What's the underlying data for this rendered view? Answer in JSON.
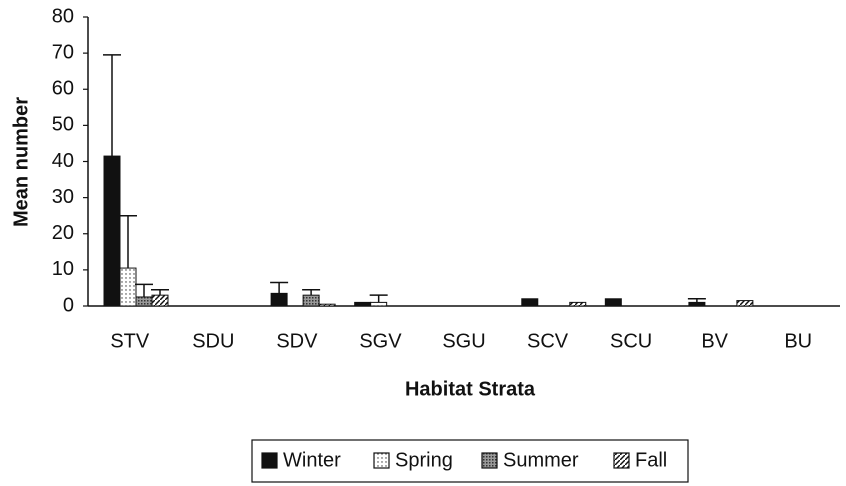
{
  "chart_data": {
    "type": "bar",
    "x_label": "Habitat Strata",
    "y_label": "Mean number",
    "categories": [
      "STV",
      "SDU",
      "SDV",
      "SGV",
      "SGU",
      "SCV",
      "SCU",
      "BV",
      "BU"
    ],
    "series": [
      {
        "name": "Winter",
        "color": "#111111",
        "values": [
          41.5,
          0,
          3.5,
          1,
          0,
          2,
          2,
          1,
          0
        ],
        "errors": [
          28,
          0,
          3,
          0,
          0,
          0,
          0,
          1,
          0
        ]
      },
      {
        "name": "Spring",
        "color": "#ffffff",
        "values": [
          10.5,
          0,
          0,
          1,
          0,
          0,
          0,
          0,
          0
        ],
        "errors": [
          14.5,
          0,
          0,
          2,
          0,
          0,
          0,
          0,
          0
        ]
      },
      {
        "name": "Summer",
        "color": "#777777",
        "values": [
          2.5,
          0,
          3,
          0,
          0,
          0,
          0,
          0,
          0
        ],
        "errors": [
          3.5,
          0,
          1.5,
          0,
          0,
          0,
          0,
          0,
          0
        ]
      },
      {
        "name": "Fall",
        "color": "#ffffff",
        "values": [
          3,
          0,
          0.5,
          0,
          0,
          1,
          0,
          1.5,
          0
        ],
        "errors": [
          1.5,
          0,
          0,
          0,
          0,
          0,
          0,
          0,
          0
        ]
      }
    ],
    "ylim": [
      0,
      80
    ],
    "yticks": [
      0,
      10,
      20,
      30,
      40,
      50,
      60,
      70,
      80
    ],
    "legend": "bottom"
  }
}
